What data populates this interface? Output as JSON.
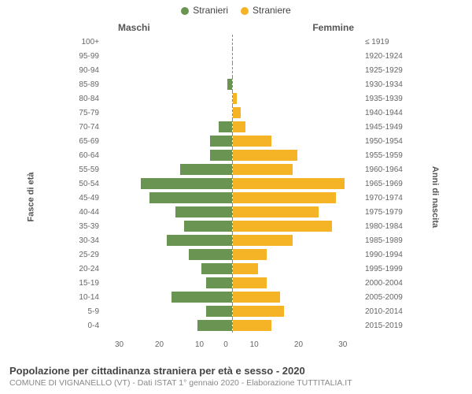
{
  "chart": {
    "type": "population-pyramid",
    "legend": [
      {
        "label": "Stranieri",
        "color": "#6a9452"
      },
      {
        "label": "Straniere",
        "color": "#f5b326"
      }
    ],
    "header_left": "Maschi",
    "header_right": "Femmine",
    "yaxis_left_label": "Fasce di età",
    "yaxis_right_label": "Anni di nascita",
    "xmax": 30,
    "xtick_step": 10,
    "xticks": [
      0,
      10,
      20,
      30
    ],
    "bar_colors": {
      "male": "#6a9452",
      "female": "#f5b326"
    },
    "background_color": "#ffffff",
    "label_color": "#666666",
    "label_fontsize": 10,
    "rows": [
      {
        "age": "100+",
        "birth": "≤ 1919",
        "m": 0,
        "f": 0
      },
      {
        "age": "95-99",
        "birth": "1920-1924",
        "m": 0,
        "f": 0
      },
      {
        "age": "90-94",
        "birth": "1925-1929",
        "m": 0,
        "f": 0
      },
      {
        "age": "85-89",
        "birth": "1930-1934",
        "m": 1,
        "f": 0
      },
      {
        "age": "80-84",
        "birth": "1935-1939",
        "m": 0,
        "f": 1
      },
      {
        "age": "75-79",
        "birth": "1940-1944",
        "m": 0,
        "f": 2
      },
      {
        "age": "70-74",
        "birth": "1945-1949",
        "m": 3,
        "f": 3
      },
      {
        "age": "65-69",
        "birth": "1950-1954",
        "m": 5,
        "f": 9
      },
      {
        "age": "60-64",
        "birth": "1955-1959",
        "m": 5,
        "f": 15
      },
      {
        "age": "55-59",
        "birth": "1960-1964",
        "m": 12,
        "f": 14
      },
      {
        "age": "50-54",
        "birth": "1965-1969",
        "m": 21,
        "f": 26
      },
      {
        "age": "45-49",
        "birth": "1970-1974",
        "m": 19,
        "f": 24
      },
      {
        "age": "40-44",
        "birth": "1975-1979",
        "m": 13,
        "f": 20
      },
      {
        "age": "35-39",
        "birth": "1980-1984",
        "m": 11,
        "f": 23
      },
      {
        "age": "30-34",
        "birth": "1985-1989",
        "m": 15,
        "f": 14
      },
      {
        "age": "25-29",
        "birth": "1990-1994",
        "m": 10,
        "f": 8
      },
      {
        "age": "20-24",
        "birth": "1995-1999",
        "m": 7,
        "f": 6
      },
      {
        "age": "15-19",
        "birth": "2000-2004",
        "m": 6,
        "f": 8
      },
      {
        "age": "10-14",
        "birth": "2005-2009",
        "m": 14,
        "f": 11
      },
      {
        "age": "5-9",
        "birth": "2010-2014",
        "m": 6,
        "f": 12
      },
      {
        "age": "0-4",
        "birth": "2015-2019",
        "m": 8,
        "f": 9
      }
    ]
  },
  "footer": {
    "title": "Popolazione per cittadinanza straniera per età e sesso - 2020",
    "subtitle": "COMUNE DI VIGNANELLO (VT) - Dati ISTAT 1° gennaio 2020 - Elaborazione TUTTITALIA.IT"
  }
}
